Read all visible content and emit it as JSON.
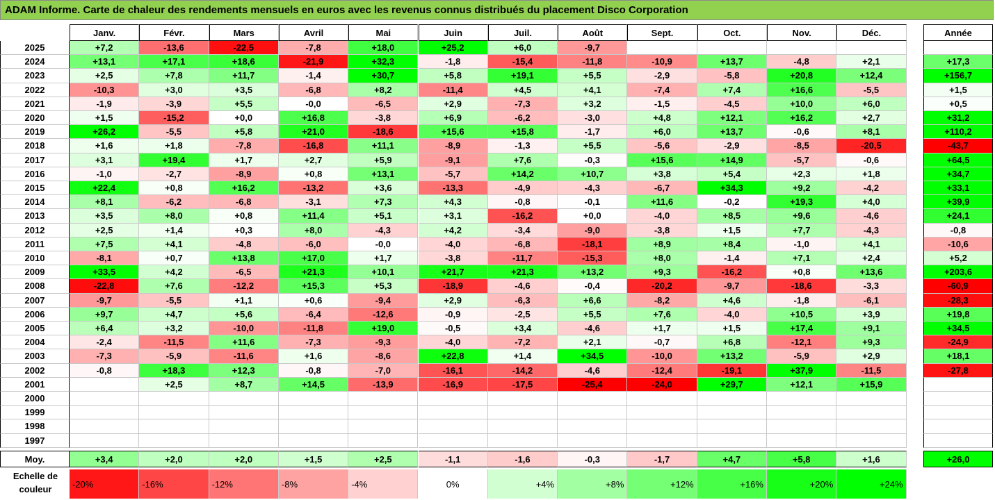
{
  "title": "ADAM Informe. Carte de chaleur des rendements mensuels en euros avec les revenus connus distribués du placement Disco Corporation",
  "colors": {
    "title_bg": "#92D050",
    "max_green": "#00FF00",
    "max_red": "#FF0000"
  },
  "chart_data": {
    "type": "heatmap",
    "title": "ADAM Informe. Carte de chaleur des rendements mensuels en euros avec les revenus connus distribués du placement Disco Corporation",
    "months": [
      "Janv.",
      "Févr.",
      "Mars",
      "Avril",
      "Mai",
      "Juin",
      "Juil.",
      "Août",
      "Sept.",
      "Oct.",
      "Nov.",
      "Déc."
    ],
    "year_header": "Année",
    "rows": [
      {
        "year": "2025",
        "values": [
          "+7,2",
          "-13,6",
          "-22,5",
          "-7,8",
          "+18,0",
          "+25,2",
          "+6,0",
          "-9,7",
          "",
          "",
          "",
          ""
        ],
        "annual": ""
      },
      {
        "year": "2024",
        "values": [
          "+13,1",
          "+17,1",
          "+18,6",
          "-21,9",
          "+32,3",
          "-1,8",
          "-15,4",
          "-11,8",
          "-10,9",
          "+13,7",
          "-4,8",
          "+2,1"
        ],
        "annual": "+17,3"
      },
      {
        "year": "2023",
        "values": [
          "+2,5",
          "+7,8",
          "+11,7",
          "-1,4",
          "+30,7",
          "+5,8",
          "+19,1",
          "+5,5",
          "-2,9",
          "-5,8",
          "+20,8",
          "+12,4"
        ],
        "annual": "+156,7"
      },
      {
        "year": "2022",
        "values": [
          "-10,3",
          "+3,0",
          "+3,5",
          "-6,8",
          "+8,2",
          "-11,4",
          "+4,5",
          "+4,1",
          "-7,4",
          "+7,4",
          "+16,6",
          "-5,5"
        ],
        "annual": "+1,5"
      },
      {
        "year": "2021",
        "values": [
          "-1,9",
          "-3,9",
          "+5,5",
          "-0,0",
          "-6,5",
          "+2,9",
          "-7,3",
          "+3,2",
          "-1,5",
          "-4,5",
          "+10,0",
          "+6,0"
        ],
        "annual": "+0,5"
      },
      {
        "year": "2020",
        "values": [
          "+1,5",
          "-15,2",
          "+0,0",
          "+16,8",
          "-3,8",
          "+6,9",
          "-6,2",
          "-3,0",
          "+4,8",
          "+12,1",
          "+16,2",
          "+2,7"
        ],
        "annual": "+31,2"
      },
      {
        "year": "2019",
        "values": [
          "+26,2",
          "-5,5",
          "+5,8",
          "+21,0",
          "-18,6",
          "+15,6",
          "+15,8",
          "-1,7",
          "+6,0",
          "+13,7",
          "-0,6",
          "+8,1"
        ],
        "annual": "+110,2"
      },
      {
        "year": "2018",
        "values": [
          "+1,6",
          "+1,8",
          "-7,8",
          "-16,8",
          "+11,1",
          "-8,9",
          "-1,3",
          "+5,5",
          "-5,6",
          "-2,9",
          "-8,5",
          "-20,5"
        ],
        "annual": "-43,7"
      },
      {
        "year": "2017",
        "values": [
          "+3,1",
          "+19,4",
          "+1,7",
          "+2,7",
          "+5,9",
          "-9,1",
          "+7,6",
          "-0,3",
          "+15,6",
          "+14,9",
          "-5,7",
          "-0,6"
        ],
        "annual": "+64,5"
      },
      {
        "year": "2016",
        "values": [
          "-1,0",
          "-2,7",
          "-8,9",
          "+0,8",
          "+13,1",
          "-5,7",
          "+14,2",
          "+10,7",
          "+3,8",
          "+5,4",
          "+2,3",
          "+1,8"
        ],
        "annual": "+34,7"
      },
      {
        "year": "2015",
        "values": [
          "+22,4",
          "+0,8",
          "+16,2",
          "-13,2",
          "+3,6",
          "-13,3",
          "-4,9",
          "-4,3",
          "-6,7",
          "+34,3",
          "+9,2",
          "-4,2"
        ],
        "annual": "+33,1"
      },
      {
        "year": "2014",
        "values": [
          "+8,1",
          "-6,2",
          "-6,8",
          "-3,1",
          "+7,3",
          "+4,3",
          "-0,8",
          "-0,1",
          "+11,6",
          "-0,2",
          "+19,3",
          "+4,0"
        ],
        "annual": "+39,9"
      },
      {
        "year": "2013",
        "values": [
          "+3,5",
          "+8,0",
          "+0,8",
          "+11,4",
          "+5,1",
          "+3,1",
          "-16,2",
          "+0,0",
          "-4,0",
          "+8,5",
          "+9,6",
          "-4,6"
        ],
        "annual": "+24,1"
      },
      {
        "year": "2012",
        "values": [
          "+2,5",
          "+1,4",
          "+0,3",
          "+8,0",
          "-4,3",
          "+4,2",
          "-3,4",
          "-9,0",
          "-3,8",
          "+1,5",
          "+7,7",
          "-4,3"
        ],
        "annual": "-0,8"
      },
      {
        "year": "2011",
        "values": [
          "+7,5",
          "+4,1",
          "-4,8",
          "-6,0",
          "-0,0",
          "-4,0",
          "-6,8",
          "-18,1",
          "+8,9",
          "+8,4",
          "-1,0",
          "+4,1"
        ],
        "annual": "-10,6"
      },
      {
        "year": "2010",
        "values": [
          "-8,1",
          "+0,7",
          "+13,8",
          "+17,0",
          "+1,7",
          "-3,8",
          "-11,7",
          "-15,3",
          "+8,0",
          "-1,4",
          "+7,1",
          "+2,4"
        ],
        "annual": "+5,2"
      },
      {
        "year": "2009",
        "values": [
          "+33,5",
          "+4,2",
          "-6,5",
          "+21,3",
          "+10,1",
          "+21,7",
          "+21,3",
          "+13,2",
          "+9,3",
          "-16,2",
          "+0,8",
          "+13,6"
        ],
        "annual": "+203,6"
      },
      {
        "year": "2008",
        "values": [
          "-22,8",
          "+7,6",
          "-12,2",
          "+15,3",
          "+5,3",
          "-18,9",
          "-4,6",
          "-0,4",
          "-20,2",
          "-9,7",
          "-18,6",
          "-3,3"
        ],
        "annual": "-60,9"
      },
      {
        "year": "2007",
        "values": [
          "-9,7",
          "-5,5",
          "+1,1",
          "+0,6",
          "-9,4",
          "+2,9",
          "-6,3",
          "+6,6",
          "-8,2",
          "+4,6",
          "-1,8",
          "-6,1"
        ],
        "annual": "-28,3"
      },
      {
        "year": "2006",
        "values": [
          "+9,7",
          "+4,7",
          "+5,6",
          "-6,4",
          "-12,6",
          "-0,9",
          "-2,5",
          "+5,5",
          "+7,6",
          "-4,0",
          "+10,5",
          "+3,9"
        ],
        "annual": "+19,8"
      },
      {
        "year": "2005",
        "values": [
          "+6,4",
          "+3,2",
          "-10,0",
          "-11,8",
          "+19,0",
          "-0,5",
          "+3,4",
          "-4,6",
          "+1,7",
          "+1,5",
          "+17,4",
          "+9,1"
        ],
        "annual": "+34,5"
      },
      {
        "year": "2004",
        "values": [
          "-2,4",
          "-11,5",
          "+11,6",
          "-7,3",
          "-9,3",
          "-4,0",
          "-7,2",
          "+2,1",
          "-0,7",
          "+6,8",
          "-12,1",
          "+9,3"
        ],
        "annual": "-24,9"
      },
      {
        "year": "2003",
        "values": [
          "-7,3",
          "-5,9",
          "-11,6",
          "+1,6",
          "-8,6",
          "+22,8",
          "+1,4",
          "+34,5",
          "-10,0",
          "+13,2",
          "-5,9",
          "+2,9"
        ],
        "annual": "+18,1"
      },
      {
        "year": "2002",
        "values": [
          "-0,8",
          "+18,3",
          "+12,3",
          "-0,8",
          "-7,0",
          "-16,1",
          "-14,2",
          "-4,6",
          "-12,4",
          "-19,1",
          "+37,9",
          "-11,5"
        ],
        "annual": "-27,8"
      },
      {
        "year": "2001",
        "values": [
          "",
          "+2,5",
          "+8,7",
          "+14,5",
          "-13,9",
          "-16,9",
          "-17,5",
          "-25,4",
          "-24,0",
          "+29,7",
          "+12,1",
          "+15,9"
        ],
        "annual": ""
      },
      {
        "year": "2000",
        "values": [
          "",
          "",
          "",
          "",
          "",
          "",
          "",
          "",
          "",
          "",
          "",
          ""
        ],
        "annual": ""
      },
      {
        "year": "1999",
        "values": [
          "",
          "",
          "",
          "",
          "",
          "",
          "",
          "",
          "",
          "",
          "",
          ""
        ],
        "annual": ""
      },
      {
        "year": "1998",
        "values": [
          "",
          "",
          "",
          "",
          "",
          "",
          "",
          "",
          "",
          "",
          "",
          ""
        ],
        "annual": ""
      },
      {
        "year": "1997",
        "values": [
          "",
          "",
          "",
          "",
          "",
          "",
          "",
          "",
          "",
          "",
          "",
          ""
        ],
        "annual": ""
      }
    ],
    "average": {
      "label": "Moy.",
      "values": [
        "+3,4",
        "+2,0",
        "+2,0",
        "+1,5",
        "+2,5",
        "-1,1",
        "-1,6",
        "-0,3",
        "-1,7",
        "+4,7",
        "+5,8",
        "+1,6"
      ],
      "annual": "+26,0"
    },
    "legend": {
      "label_line1": "Echelle de",
      "label_line2": "couleur",
      "steps": [
        {
          "label": "-20%",
          "value": -20
        },
        {
          "label": "-16%",
          "value": -16
        },
        {
          "label": "-12%",
          "value": -12
        },
        {
          "label": "-8%",
          "value": -8
        },
        {
          "label": "-4%",
          "value": -4
        },
        {
          "label": "0%",
          "value": 0
        },
        {
          "label": "+4%",
          "value": 4
        },
        {
          "label": "+8%",
          "value": 8
        },
        {
          "label": "+12%",
          "value": 12
        },
        {
          "label": "+16%",
          "value": 16
        },
        {
          "label": "+20%",
          "value": 20
        },
        {
          "label": "+24%",
          "value": 24
        }
      ]
    }
  }
}
